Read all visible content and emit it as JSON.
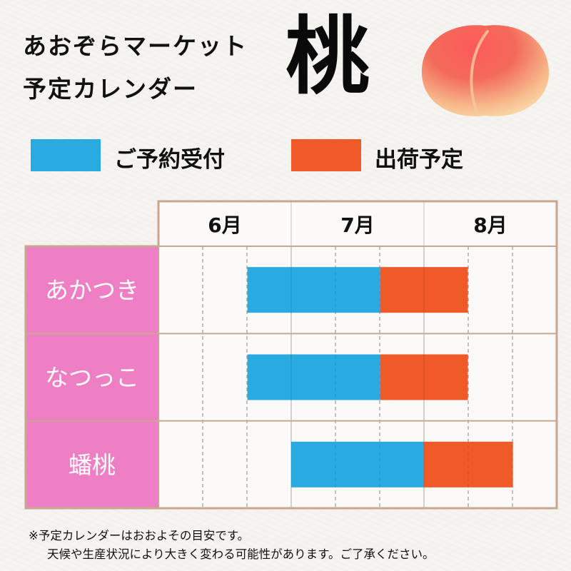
{
  "header": {
    "title_line1": "あおぞらマーケット",
    "title_line2": "予定カレンダー",
    "fruit": "桃",
    "peach_icon": "peach-icon"
  },
  "legend": [
    {
      "label": "ご予約受付",
      "color": "#29abe2"
    },
    {
      "label": "出荷予定",
      "color": "#f05a28"
    }
  ],
  "chart_data": {
    "type": "gantt",
    "months": [
      "6月",
      "7月",
      "8月"
    ],
    "subdivisions_per_month": 3,
    "rows": [
      {
        "label": "あかつき",
        "reservation": [
          6.67,
          7.67
        ],
        "shipping": [
          7.67,
          8.33
        ]
      },
      {
        "label": "なつっこ",
        "reservation": [
          6.67,
          7.67
        ],
        "shipping": [
          7.67,
          8.33
        ]
      },
      {
        "label": "蟠桃",
        "reservation": [
          7.0,
          8.0
        ],
        "shipping": [
          8.0,
          8.67
        ]
      }
    ]
  },
  "colors": {
    "reservation": "#29abe2",
    "shipping": "#f05a28",
    "row_label_bg": "#ee7fc4",
    "frame": "#c9a691"
  },
  "footnote": [
    "※予定カレンダーはおおよその目安です。",
    "天候や生産状況により大きく変わる可能性があります。ご了承ください。"
  ]
}
